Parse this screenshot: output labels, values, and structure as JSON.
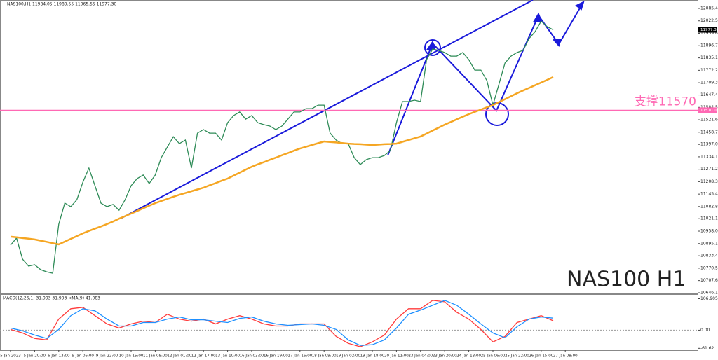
{
  "chart_data": [
    {
      "type": "line",
      "title": "NAS100,H1  11984.05 11989.55 11965.55 11977.30",
      "annotation": "NAS100 H1",
      "categories": [
        "5 Jan 2023",
        null,
        null,
        null,
        "5 Jan 20:00",
        null,
        null,
        null,
        "6 Jan 13:00",
        null,
        null,
        null,
        "9 Jan 06:00",
        null,
        null,
        null,
        "9 Jan 22:00",
        null,
        null,
        null,
        "10 Jan 15:00",
        null,
        null,
        null,
        "11 Jan 08:00",
        null,
        null,
        null,
        "12 Jan 01:00",
        null,
        null,
        null,
        "12 Jan 17:00",
        null,
        null,
        null,
        "13 Jan 10:00",
        null,
        null,
        null,
        "16 Jan 03:00",
        null,
        null,
        null,
        "16 Jan 19:00",
        null,
        null,
        null,
        "17 Jan 16:00",
        null,
        null,
        null,
        "18 Jan 09:00",
        null,
        null,
        null,
        "19 Jan 02:00",
        null,
        null,
        null,
        "19 Jan 18:00",
        null,
        null,
        null,
        "20 Jan 11:00",
        null,
        null,
        null,
        "23 Jan 04:00",
        null,
        null,
        null,
        "23 Jan 20:00",
        null,
        null,
        null,
        "24 Jan 13:00",
        null,
        null,
        null,
        "25 Jan 06:00",
        null,
        null,
        null,
        "25 Jan 22:00",
        null,
        null,
        null,
        "26 Jan 15:00",
        null,
        null,
        null,
        "27 Jan 08:00"
      ],
      "series": [
        {
          "color": "#2e8b57",
          "values": [
            10887,
            10923,
            10816,
            10781,
            10788,
            10763,
            10752,
            10745,
            10993,
            11100,
            11082,
            11117,
            11206,
            11277,
            11188,
            11100,
            11082,
            11093,
            11064,
            11117,
            11188,
            11224,
            11242,
            11199,
            11242,
            11330,
            11383,
            11436,
            11401,
            11419,
            11277,
            11454,
            11472,
            11454,
            11454,
            11419,
            11507,
            11543,
            11561,
            11525,
            11543,
            11507,
            11497,
            11490,
            11472,
            11490,
            11525,
            11561,
            11561,
            11578,
            11578,
            11596,
            11596,
            11454,
            11419,
            11401,
            11401,
            11330,
            11295,
            11320,
            11330,
            11330,
            11341,
            11366,
            11507,
            11614,
            11614,
            11621,
            11614,
            11826,
            11880,
            11873,
            11862,
            11844,
            11844,
            11862,
            11826,
            11773,
            11773,
            11720,
            11596,
            11702,
            11809,
            11844,
            11862,
            11873,
            11933,
            11968,
            12021,
            11993,
            11977.3,
            null,
            null
          ]
        },
        {
          "color": "#f5a623",
          "values": [
            10930,
            10927,
            10923,
            10920,
            10916,
            10910,
            10904,
            10897,
            10891,
            10905,
            10919,
            10933,
            10947,
            10959,
            10971,
            10982,
            10994,
            11007,
            11021,
            11034,
            11047,
            11060,
            11074,
            11087,
            11100,
            11111,
            11121,
            11132,
            11142,
            11151,
            11160,
            11169,
            11178,
            11190,
            11201,
            11213,
            11224,
            11239,
            11254,
            11269,
            11284,
            11296,
            11307,
            11319,
            11330,
            11342,
            11353,
            11365,
            11376,
            11385,
            11394,
            11403,
            11412,
            11409,
            11407,
            11404,
            11401,
            11399,
            11398,
            11396,
            11394,
            11396,
            11398,
            11399,
            11401,
            11410,
            11419,
            11428,
            11437,
            11452,
            11467,
            11482,
            11497,
            11510,
            11524,
            11537,
            11550,
            11562,
            11573,
            11585,
            11596,
            11611,
            11626,
            11641,
            11656,
            11670,
            11683,
            11697,
            11710,
            11724,
            11738,
            null,
            null
          ]
        }
      ],
      "ylim": [
        10639,
        12128
      ],
      "yticks": [
        12085.45,
        12022.55,
        11959.65,
        11896.75,
        {
          "value": 11835.1,
          "label": "11835.10"
        },
        {
          "value": 11772.2,
          "label": "11772.20"
        },
        {
          "value": 11709.3,
          "label": "11709.30"
        },
        {
          "value": 11647.4,
          "label": "11647.40"
        },
        {
          "value": 11584.5,
          "label": "11584.50"
        },
        {
          "value": 11521.6,
          "label": "11521.60"
        },
        {
          "value": 11458.7,
          "label": "11458.70"
        },
        11397.05,
        11334.15,
        11271.25,
        11208.35,
        11145.45,
        {
          "value": 11082.8,
          "label": "11082.80"
        },
        11021.15,
        {
          "value": 10958,
          "label": "10958.00"
        },
        {
          "value": 10895.1,
          "label": "10895.10"
        },
        10833.45,
        10770.55,
        10707.65,
        10646.15
      ],
      "hlines": [
        {
          "value": 11570,
          "label": "支撑11570",
          "tag": "11570.00",
          "color": "#ff69b4"
        }
      ],
      "price_tag": {
        "value": 11977.3,
        "label": "11977.30"
      }
    },
    {
      "type": "line",
      "title": "MACD(12,26,1) 31.993 31.993 ×MA(9) 41.083",
      "categories": [
        null,
        null,
        null,
        null,
        null,
        null,
        null,
        null,
        null,
        null,
        null,
        null,
        null,
        null,
        null,
        null,
        null,
        null,
        null,
        null,
        null,
        null,
        null,
        null,
        null,
        null,
        null,
        null,
        null,
        null,
        null,
        null,
        null,
        null,
        null,
        null,
        null,
        null,
        null,
        null,
        null,
        null,
        null,
        null,
        null,
        null
      ],
      "series": [
        {
          "color": "#ff3b3b",
          "values": [
            2.4,
            -9.4,
            -28.2,
            -32.9,
            37.6,
            72.9,
            77.6,
            49.4,
            21.2,
            7.1,
            21.2,
            30.6,
            25.9,
            54.1,
            37.6,
            30.6,
            37.6,
            21.2,
            37.6,
            49.4,
            37.6,
            21.2,
            14.1,
            14.1,
            21.2,
            21.2,
            21.2,
            -21.2,
            -44.7,
            -56.4,
            -39.9,
            -16.5,
            37.6,
            72.9,
            72.9,
            101.1,
            96.4,
            61.1,
            37.6,
            2.4,
            -39.9,
            -21.2,
            25.9,
            37.6,
            49.4,
            32.0
          ]
        },
        {
          "color": "#1e90ff",
          "values": [
            7.1,
            -2.4,
            -16.5,
            -28.2,
            2.4,
            49.4,
            72.9,
            65.8,
            37.6,
            14.1,
            14.1,
            25.9,
            25.9,
            37.6,
            44.7,
            35.3,
            35.3,
            30.6,
            25.9,
            40.0,
            44.7,
            30.6,
            21.2,
            16.5,
            18.8,
            21.2,
            16.5,
            2.4,
            -32.9,
            -51.7,
            -49.4,
            -32.9,
            7.1,
            54.1,
            68.2,
            84.6,
            101.1,
            84.6,
            54.1,
            21.2,
            -9.4,
            -25.9,
            11.8,
            37.6,
            44.7,
            41.1
          ]
        }
      ],
      "ylim": [
        -68,
        120
      ],
      "yticks": [
        106.905,
        {
          "value": 0,
          "label": "0.00"
        },
        -61.62
      ]
    }
  ]
}
